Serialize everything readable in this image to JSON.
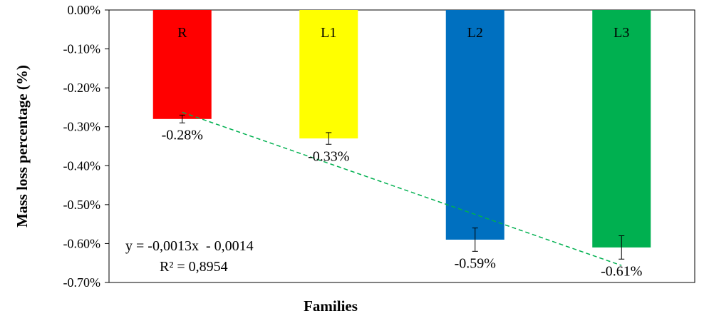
{
  "chart_data": {
    "type": "bar",
    "categories": [
      "R",
      "L1",
      "L2",
      "L3"
    ],
    "values": [
      -0.28,
      -0.33,
      -0.59,
      -0.61
    ],
    "data_labels": [
      "-0.28%",
      "-0.33%",
      "-0.59%",
      "-0.61%"
    ],
    "error_bars": [
      0.01,
      0.015,
      0.03,
      0.03
    ],
    "colors": [
      "#ff0000",
      "#ffff00",
      "#0070c0",
      "#00b050"
    ],
    "xlabel": "Families",
    "ylabel": "Mass loss percentage (%)",
    "ylim": [
      -0.7,
      0.0
    ],
    "yticks": [
      0.0,
      -0.1,
      -0.2,
      -0.3,
      -0.4,
      -0.5,
      -0.6,
      -0.7
    ],
    "ytick_labels": [
      "0.00%",
      "-0.10%",
      "-0.20%",
      "-0.30%",
      "-0.40%",
      "-0.50%",
      "-0.60%",
      "-0.70%"
    ],
    "grid": false,
    "legend": "none",
    "trendline": {
      "type": "linear",
      "color": "#00b050",
      "style": "dashed",
      "equation": "y = -0,0013x  - 0,0014",
      "r_squared": "R² = 0,8954"
    }
  }
}
